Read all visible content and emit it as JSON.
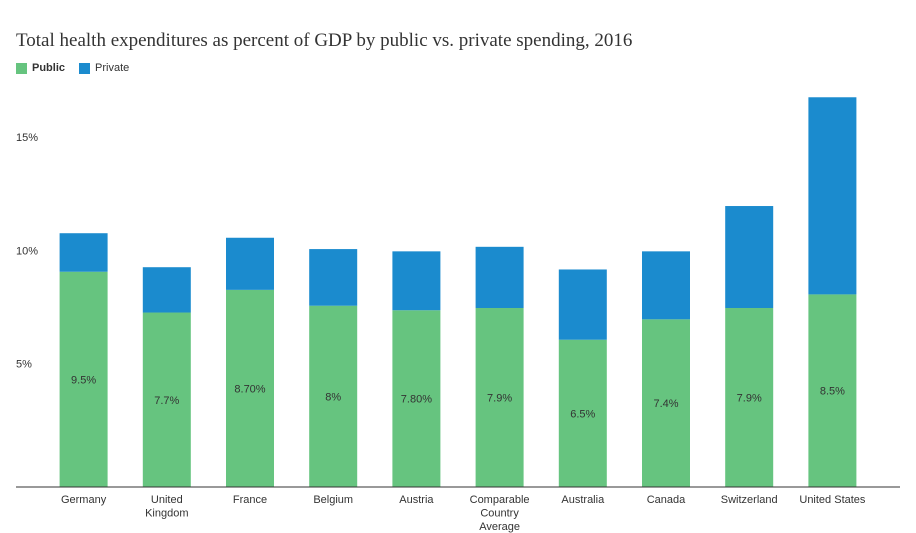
{
  "chart_data": {
    "type": "bar",
    "stacked": true,
    "title": "Total health expenditures as percent of GDP by public vs. private spending, 2016",
    "xlabel": "",
    "ylabel": "",
    "ylim": [
      0,
      17.3
    ],
    "y_ticks": [
      {
        "value": 5,
        "label": "5%"
      },
      {
        "value": 10,
        "label": "10%"
      },
      {
        "value": 15,
        "label": "15%"
      }
    ],
    "grid": false,
    "legend_position": "top-left",
    "categories": [
      "Germany",
      "United Kingdom",
      "France",
      "Belgium",
      "Austria",
      "Comparable Country Average",
      "Australia",
      "Canada",
      "Switzerland",
      "United States"
    ],
    "category_labels": [
      [
        "Germany"
      ],
      [
        "United",
        "Kingdom"
      ],
      [
        "France"
      ],
      [
        "Belgium"
      ],
      [
        "Austria"
      ],
      [
        "Comparable",
        "Country",
        "Average"
      ],
      [
        "Australia"
      ],
      [
        "Canada"
      ],
      [
        "Switzerland"
      ],
      [
        "United States"
      ]
    ],
    "series": [
      {
        "name": "Public",
        "color": "#66c47f",
        "values": [
          9.5,
          7.7,
          8.7,
          8.0,
          7.8,
          7.9,
          6.5,
          7.4,
          7.9,
          8.5
        ],
        "labels": [
          "9.5%",
          "7.7%",
          "8.70%",
          "8%",
          "7.80%",
          "7.9%",
          "6.5%",
          "7.4%",
          "7.9%",
          "8.5%"
        ]
      },
      {
        "name": "Private",
        "color": "#1b8bce",
        "values": [
          1.7,
          2.0,
          2.3,
          2.5,
          2.6,
          2.7,
          3.1,
          3.0,
          4.5,
          8.7
        ]
      }
    ]
  }
}
